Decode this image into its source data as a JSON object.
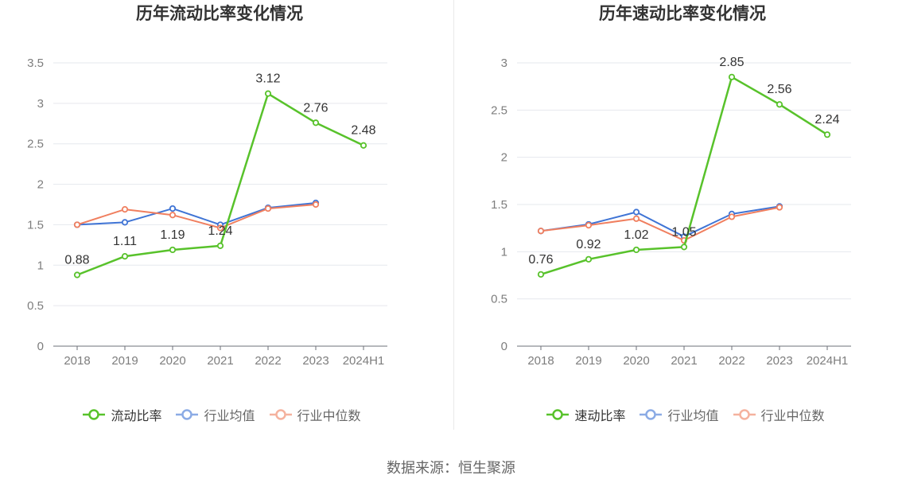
{
  "chart_data": [
    {
      "type": "line",
      "title": "历年流动比率变化情况",
      "xlabel": "",
      "ylabel": "",
      "grid": true,
      "legend_position": "bottom",
      "categories": [
        "2018",
        "2019",
        "2020",
        "2021",
        "2022",
        "2023",
        "2024H1"
      ],
      "ylim": [
        0,
        3.5
      ],
      "yticks": [
        0,
        0.5,
        1,
        1.5,
        2,
        2.5,
        3,
        3.5
      ],
      "series": [
        {
          "name": "流动比率",
          "values": [
            0.88,
            1.11,
            1.19,
            1.24,
            3.12,
            2.76,
            2.48
          ],
          "color": "#58c22b",
          "show_labels": true
        },
        {
          "name": "行业均值",
          "values": [
            1.5,
            1.53,
            1.7,
            1.5,
            1.71,
            1.77,
            null
          ],
          "color": "#3f74d5",
          "show_labels": false
        },
        {
          "name": "行业中位数",
          "values": [
            1.5,
            1.69,
            1.62,
            1.46,
            1.7,
            1.75,
            null
          ],
          "color": "#f07f5f",
          "show_labels": false
        }
      ]
    },
    {
      "type": "line",
      "title": "历年速动比率变化情况",
      "xlabel": "",
      "ylabel": "",
      "grid": true,
      "legend_position": "bottom",
      "categories": [
        "2018",
        "2019",
        "2020",
        "2021",
        "2022",
        "2023",
        "2024H1"
      ],
      "ylim": [
        0,
        3
      ],
      "yticks": [
        0,
        0.5,
        1,
        1.5,
        2,
        2.5,
        3
      ],
      "series": [
        {
          "name": "速动比率",
          "values": [
            0.76,
            0.92,
            1.02,
            1.05,
            2.85,
            2.56,
            2.24
          ],
          "color": "#58c22b",
          "show_labels": true
        },
        {
          "name": "行业均值",
          "values": [
            1.22,
            1.29,
            1.42,
            1.16,
            1.4,
            1.48,
            null
          ],
          "color": "#3f74d5",
          "show_labels": false
        },
        {
          "name": "行业中位数",
          "values": [
            1.22,
            1.28,
            1.35,
            1.12,
            1.37,
            1.47,
            null
          ],
          "color": "#f07f5f",
          "show_labels": false
        }
      ]
    }
  ],
  "source": "数据来源：恒生聚源"
}
